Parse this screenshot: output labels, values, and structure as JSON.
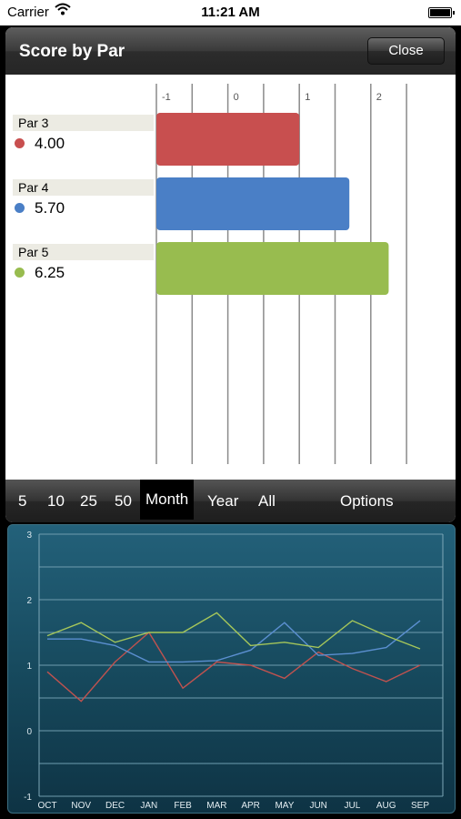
{
  "status_bar": {
    "carrier": "Carrier",
    "time": "11:21 AM"
  },
  "panel": {
    "title": "Score by Par",
    "close_label": "Close"
  },
  "bar_chart": {
    "axis_ticks": [
      "-1",
      "0",
      "1",
      "2"
    ],
    "items": [
      {
        "label": "Par 3",
        "value": "4.00",
        "color": "#c84f4f"
      },
      {
        "label": "Par 4",
        "value": "5.70",
        "color": "#4a7fc6"
      },
      {
        "label": "Par 5",
        "value": "6.25",
        "color": "#98bc4f"
      }
    ]
  },
  "toolbar": {
    "items": [
      "5",
      "10",
      "25",
      "50",
      "Month",
      "Year",
      "All"
    ],
    "active": "Month",
    "options_label": "Options"
  },
  "chart_data": [
    {
      "type": "bar",
      "orientation": "horizontal",
      "categories": [
        "Par 3",
        "Par 4",
        "Par 5"
      ],
      "values": [
        1.0,
        1.7,
        2.25
      ],
      "xlim": [
        -1,
        2.5
      ],
      "ticks": [
        "-1",
        "0",
        "1",
        "2"
      ],
      "colors": [
        "#c84f4f",
        "#4a7fc6",
        "#98bc4f"
      ],
      "grid": true
    },
    {
      "type": "line",
      "categories": [
        "OCT",
        "NOV",
        "DEC",
        "JAN",
        "FEB",
        "MAR",
        "APR",
        "MAY",
        "JUN",
        "JUL",
        "AUG",
        "SEP"
      ],
      "ylim": [
        -1,
        3
      ],
      "yticks": [
        "3",
        "2",
        "1",
        "0",
        "-1"
      ],
      "grid": true,
      "series": [
        {
          "color": "#c0524f",
          "values": [
            0.9,
            0.45,
            1.05,
            1.5,
            0.65,
            1.05,
            1.0,
            0.8,
            1.2,
            0.95,
            0.75,
            1.0
          ]
        },
        {
          "color": "#5b8fd0",
          "values": [
            1.4,
            1.4,
            1.3,
            1.05,
            1.05,
            1.07,
            1.23,
            1.65,
            1.15,
            1.18,
            1.27,
            1.68
          ]
        },
        {
          "color": "#a5c65a",
          "values": [
            1.45,
            1.65,
            1.35,
            1.5,
            1.5,
            1.8,
            1.3,
            1.35,
            1.27,
            1.68,
            1.45,
            1.25
          ]
        }
      ]
    }
  ]
}
